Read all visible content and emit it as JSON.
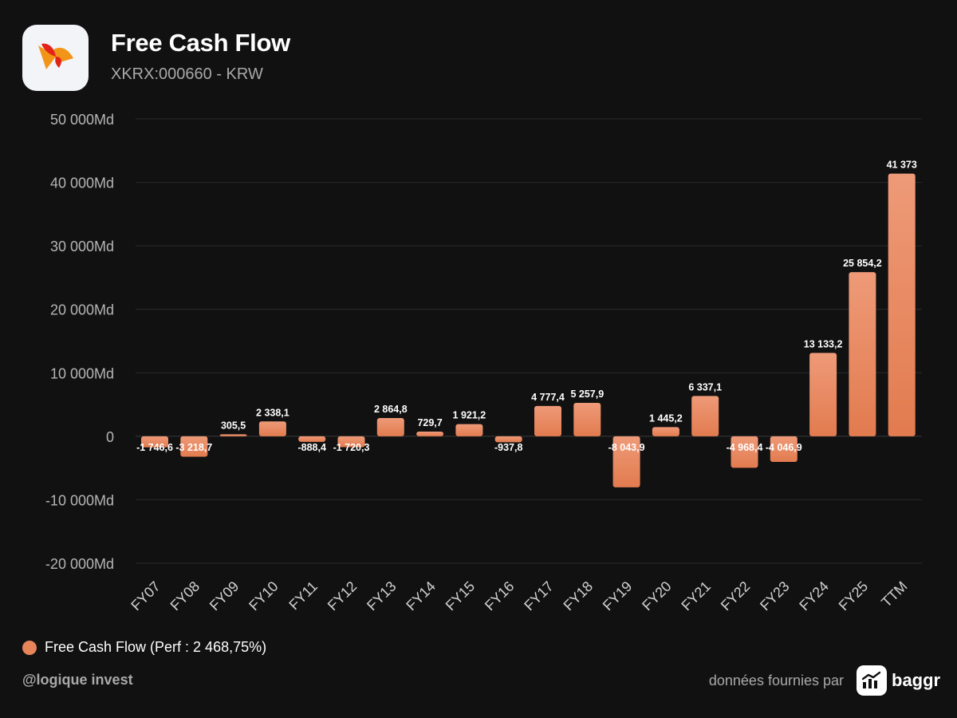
{
  "header": {
    "title": "Free Cash Flow",
    "subtitle": "XKRX:000660 - KRW"
  },
  "legend": {
    "label": "Free Cash Flow (Perf : 2 468,75%)",
    "color": "#e8845a"
  },
  "footer": {
    "handle": "@logique invest",
    "provided_by": "données fournies par",
    "brand": "baggr"
  },
  "colors": {
    "bar_top": "#ee9a78",
    "bar_bottom": "#e27b4f",
    "grid": "#2a2a2a",
    "axis_text": "#b5b5b5"
  },
  "chart_data": {
    "type": "bar",
    "categories": [
      "FY07",
      "FY08",
      "FY09",
      "FY10",
      "FY11",
      "FY12",
      "FY13",
      "FY14",
      "FY15",
      "FY16",
      "FY17",
      "FY18",
      "FY19",
      "FY20",
      "FY21",
      "FY22",
      "FY23",
      "FY24",
      "FY25",
      "TTM"
    ],
    "series": [
      {
        "name": "Free Cash Flow",
        "values": [
          -1746.6,
          -3218.7,
          305.5,
          2338.1,
          -888.4,
          -1720.3,
          2864.8,
          729.7,
          1921.2,
          -937.8,
          4777.4,
          5257.9,
          -8043.9,
          1445.2,
          6337.1,
          -4968.4,
          -4046.9,
          13133.2,
          25854.2,
          41373
        ],
        "labels": [
          "-1 746,6",
          "-3 218,7",
          "305,5",
          "2 338,1",
          "-888,4",
          "-1 720,3",
          "2 864,8",
          "729,7",
          "1 921,2",
          "-937,8",
          "4 777,4",
          "5 257,9",
          "-8 043,9",
          "1 445,2",
          "6 337,1",
          "-4 968,4",
          "-4 046,9",
          "13 133,2",
          "25 854,2",
          "41 373"
        ]
      }
    ],
    "yticks": [
      50000,
      40000,
      30000,
      20000,
      10000,
      0,
      -10000,
      -20000
    ],
    "ytick_labels": [
      "50 000Md",
      "40 000Md",
      "30 000Md",
      "20 000Md",
      "10 000Md",
      "0",
      "-10 000Md",
      "-20 000Md"
    ],
    "ylim": [
      -20000,
      50000
    ],
    "grid": true,
    "legend_position": "bottom-left"
  }
}
